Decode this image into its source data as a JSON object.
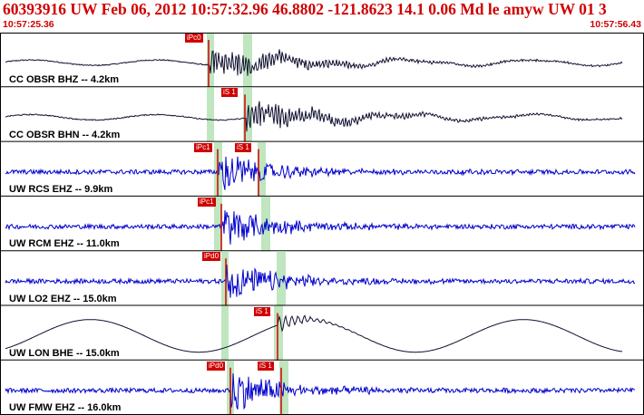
{
  "header": {
    "title": "60393916 UW Feb 06, 2012 10:57:32.96   46.8802 -121.8623 14.1 0.06 Md le amyw UW 01   3",
    "time_start": "10:57:25.36",
    "time_end": "10:57:56.43"
  },
  "colors": {
    "header_text": "#d00000",
    "pick": "#d00000",
    "green_window": "#bfe6bf",
    "trace_blue": "#0000cc",
    "trace_black": "#101030",
    "grid": "#000000"
  },
  "traces": [
    {
      "label": "CC OBSR BHZ -- 4.2km",
      "color": "black",
      "style": "broadband",
      "picks": [
        {
          "label": "iPc0",
          "t": 230
        }
      ],
      "green": [
        [
          228,
          236
        ],
        [
          268,
          278
        ]
      ]
    },
    {
      "label": "CC OBSR BHN -- 4.2km",
      "color": "black",
      "style": "broadband",
      "picks": [
        {
          "label": "iS 1",
          "t": 270
        }
      ],
      "green": [
        [
          228,
          236
        ],
        [
          268,
          278
        ]
      ]
    },
    {
      "label": "UW RCS EHZ -- 9.9km",
      "color": "blue",
      "style": "short",
      "picks": [
        {
          "label": "iPc1",
          "t": 240
        },
        {
          "label": "iS 1",
          "t": 285
        }
      ],
      "green": [
        [
          236,
          245
        ],
        [
          284,
          293
        ]
      ]
    },
    {
      "label": "UW RCM EHZ -- 11.0km",
      "color": "blue",
      "style": "short",
      "picks": [
        {
          "label": "iPc1",
          "t": 244
        }
      ],
      "green": [
        [
          236,
          245
        ],
        [
          288,
          298
        ]
      ]
    },
    {
      "label": "UW LO2 EHZ -- 15.0km",
      "color": "blue",
      "style": "short",
      "picks": [
        {
          "label": "iPd0",
          "t": 249
        }
      ],
      "green": [
        [
          244,
          252
        ],
        [
          305,
          315
        ]
      ]
    },
    {
      "label": "UW LON BHE -- 15.0km",
      "color": "black",
      "style": "longperiod",
      "picks": [
        {
          "label": "iS 1",
          "t": 306
        }
      ],
      "green": [
        [
          244,
          252
        ],
        [
          302,
          312
        ]
      ]
    },
    {
      "label": "UW FMW EHZ -- 16.0km",
      "color": "blue",
      "style": "short",
      "picks": [
        {
          "label": "iPd0",
          "t": 254
        },
        {
          "label": "iS 1",
          "t": 310
        }
      ],
      "green": [
        [
          250,
          258
        ],
        [
          308,
          318
        ]
      ]
    }
  ]
}
